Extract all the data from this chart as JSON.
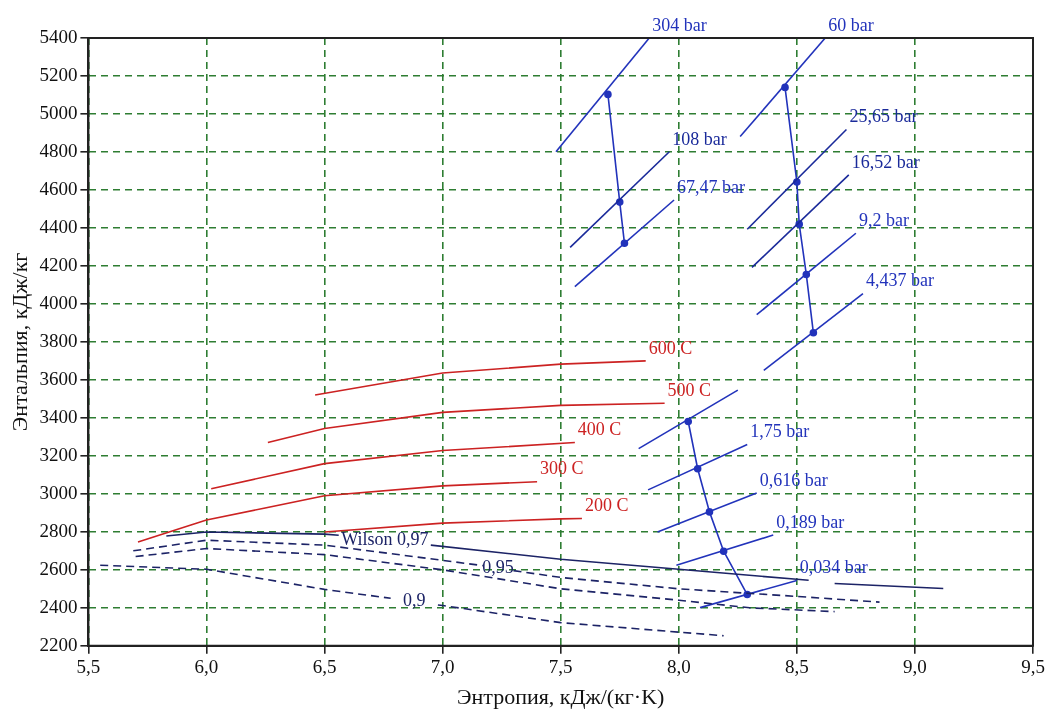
{
  "chart_data": {
    "type": "line",
    "xlabel": "Энтропия, кДж/(кг·K)",
    "ylabel": "Энтальпия, кДж/кг",
    "xlim": [
      5.5,
      9.5
    ],
    "ylim": [
      2200,
      5400
    ],
    "xticks": [
      {
        "value": 5.5,
        "label": "5,5"
      },
      {
        "value": 6.0,
        "label": "6,0"
      },
      {
        "value": 6.5,
        "label": "6,5"
      },
      {
        "value": 7.0,
        "label": "7,0"
      },
      {
        "value": 7.5,
        "label": "7,5"
      },
      {
        "value": 8.0,
        "label": "8,0"
      },
      {
        "value": 8.5,
        "label": "8,5"
      },
      {
        "value": 9.0,
        "label": "9,0"
      },
      {
        "value": 9.5,
        "label": "9,5"
      }
    ],
    "yticks": [
      2200,
      2400,
      2600,
      2800,
      3000,
      3200,
      3400,
      3600,
      3800,
      4000,
      4200,
      4400,
      4600,
      4800,
      5000,
      5200,
      5400
    ],
    "grid": true,
    "legend": false,
    "marker": "none",
    "series": [
      {
        "name": "600 C",
        "color": "#cc2222",
        "x": [
          6.46,
          7.0,
          7.5,
          7.86
        ],
        "values": [
          3520,
          3636,
          3683,
          3700
        ]
      },
      {
        "name": "500 C",
        "color": "#cc2222",
        "x": [
          6.26,
          6.5,
          7.0,
          7.5,
          7.94
        ],
        "values": [
          3270,
          3344,
          3429,
          3466,
          3477
        ]
      },
      {
        "name": "400 C",
        "color": "#cc2222",
        "x": [
          6.02,
          6.5,
          7.0,
          7.56
        ],
        "values": [
          3027,
          3159,
          3228,
          3270
        ]
      },
      {
        "name": "300 C",
        "color": "#cc2222",
        "x": [
          5.71,
          6.0,
          6.5,
          7.0,
          7.4
        ],
        "values": [
          2746,
          2862,
          2990,
          3042,
          3064
        ]
      },
      {
        "name": "200 C",
        "color": "#cc2222",
        "x": [
          6.5,
          7.0,
          7.5,
          7.59
        ],
        "values": [
          2799,
          2846,
          2868,
          2870
        ]
      },
      {
        "name": "Wilson 0,97",
        "color": "#1c2366",
        "x": [
          5.83,
          6.0,
          6.5,
          6.56,
          6.75,
          6.95,
          7.5,
          8.0,
          8.5,
          8.55,
          8.6,
          8.66,
          9.12
        ],
        "values": [
          2778,
          2799,
          2788,
          2782,
          null,
          2730,
          2656,
          2603,
          2550,
          2545,
          null,
          2528,
          2502
        ]
      },
      {
        "name": "0,95",
        "color": "#1c2366",
        "line_style": "dashed",
        "x": [
          5.69,
          6.0,
          6.5,
          7.0,
          7.17,
          7.23,
          7.3,
          7.5,
          8.0,
          8.5,
          8.85
        ],
        "values": [
          2700,
          2756,
          2730,
          2650,
          2622,
          null,
          2596,
          2560,
          2500,
          2460,
          2430
        ]
      },
      {
        "color": "#1c2366",
        "line_style": "dashed",
        "x": [
          5.7,
          6.0,
          6.5,
          7.0,
          7.5,
          8.0,
          8.3,
          8.66
        ],
        "values": [
          2670,
          2712,
          2680,
          2600,
          2500,
          2440,
          2400,
          2380
        ]
      },
      {
        "name": "0,9",
        "color": "#1c2366",
        "line_style": "dashed",
        "x": [
          5.55,
          6.0,
          6.5,
          6.78,
          6.88,
          6.98,
          7.0,
          7.5,
          8.19
        ],
        "values": [
          2624,
          2603,
          2497,
          2450,
          null,
          2415,
          2412,
          2322,
          2253
        ]
      },
      {
        "name": "304 bar",
        "color": "#2233bb",
        "x": [
          7.48,
          7.875
        ],
        "values": [
          4801,
          5400
        ]
      },
      {
        "name": "60 bar",
        "color": "#2233bb",
        "x": [
          8.26,
          8.62
        ],
        "values": [
          4881,
          5400
        ]
      },
      {
        "name": "108 bar",
        "color": "#1a2a9a",
        "x": [
          7.54,
          7.96
        ],
        "values": [
          4298,
          4801
        ]
      },
      {
        "name": "67,47 bar",
        "color": "#2233bb",
        "x": [
          7.56,
          7.98
        ],
        "values": [
          4091,
          4547
        ]
      },
      {
        "name": "25,65 bar",
        "color": "#1a2a9a",
        "x": [
          8.29,
          8.71
        ],
        "values": [
          4393,
          4918
        ]
      },
      {
        "name": "16,52 bar",
        "color": "#1a2a9a",
        "x": [
          8.31,
          8.72
        ],
        "values": [
          4192,
          4679
        ]
      },
      {
        "name": "9,2 bar",
        "color": "#2233bb",
        "x": [
          8.33,
          8.75
        ],
        "values": [
          3943,
          4372
        ]
      },
      {
        "name": "4,437 bar",
        "color": "#2233bb",
        "x": [
          8.36,
          8.78
        ],
        "values": [
          3650,
          4054
        ]
      },
      {
        "color": "#2233bb",
        "x": [
          7.83,
          8.25
        ],
        "values": [
          3238,
          3546
        ]
      },
      {
        "name": "1,75 bar",
        "color": "#2233bb",
        "x": [
          7.87,
          8.29
        ],
        "values": [
          3021,
          3260
        ]
      },
      {
        "name": "0,616 bar",
        "color": "#2233bb",
        "x": [
          7.91,
          8.33
        ],
        "values": [
          2799,
          3005
        ]
      },
      {
        "name": "0,189 bar",
        "color": "#2233bb",
        "x": [
          7.99,
          8.4
        ],
        "values": [
          2624,
          2783
        ]
      },
      {
        "name": "0,034 bar",
        "color": "#2233bb",
        "x": [
          8.09,
          8.5
        ],
        "values": [
          2401,
          2544
        ]
      },
      {
        "color": "#2233bb",
        "marker": "circle",
        "x": [
          7.7,
          7.75,
          7.77
        ],
        "values": [
          5103,
          4536,
          4319
        ]
      },
      {
        "color": "#2233bb",
        "marker": "circle",
        "x": [
          8.45,
          8.5,
          8.51,
          8.54,
          8.57
        ],
        "values": [
          5140,
          4642,
          4420,
          4155,
          3848
        ]
      },
      {
        "color": "#2233bb",
        "marker": "circle",
        "x": [
          8.04,
          8.08,
          8.13,
          8.19,
          8.29
        ],
        "values": [
          3381,
          3132,
          2905,
          2698,
          2470
        ]
      }
    ]
  }
}
